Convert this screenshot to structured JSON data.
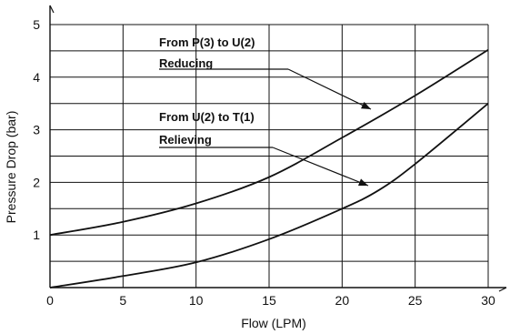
{
  "chart_data": {
    "type": "line",
    "xlabel": "Flow (LPM)",
    "ylabel": "Pressure Drop (bar)",
    "xlim": [
      0,
      30
    ],
    "ylim": [
      0,
      5
    ],
    "xticks": [
      0,
      5,
      10,
      15,
      20,
      25,
      30
    ],
    "yticks": [
      1,
      2,
      3,
      4,
      5
    ],
    "x_grid_step": 5,
    "y_grid_step": 0.5,
    "grid": true,
    "series": [
      {
        "name": "From P(3) to U(2) Reducing",
        "x": [
          0,
          5,
          10,
          15,
          20,
          25,
          30
        ],
        "y": [
          1.0,
          1.25,
          1.6,
          2.1,
          2.85,
          3.65,
          4.52
        ]
      },
      {
        "name": "From U(2) to T(1) Relieving",
        "x": [
          0,
          5,
          10,
          15,
          20,
          22.5,
          25,
          30
        ],
        "y": [
          0.0,
          0.22,
          0.48,
          0.92,
          1.5,
          1.85,
          2.35,
          3.5
        ]
      }
    ],
    "annotations": [
      {
        "line1": "From P(3) to U(2)",
        "line2": "Reducing",
        "series": 0
      },
      {
        "line1": "From U(2) to T(1)",
        "line2": "Relieving",
        "series": 1
      }
    ]
  }
}
